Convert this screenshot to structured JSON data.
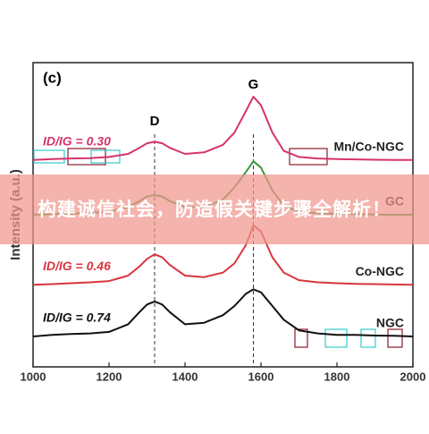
{
  "chart_data": {
    "type": "line",
    "panel_label": "(c)",
    "y_label": "Intensity (a.u.)",
    "x": [
      1000,
      1050,
      1100,
      1150,
      1200,
      1250,
      1280,
      1300,
      1320,
      1340,
      1360,
      1400,
      1450,
      1500,
      1530,
      1560,
      1580,
      1600,
      1630,
      1660,
      1700,
      1750,
      1800,
      1850,
      1900,
      1950,
      2000
    ],
    "xlim": [
      1000,
      2000
    ],
    "xticks": [
      1000,
      1200,
      1400,
      1600,
      1800,
      2000
    ],
    "ylim": [
      0,
      100
    ],
    "series": [
      {
        "name": "NGC",
        "color": "#111111",
        "ratio_label": "ID/IG = 0.74",
        "values": [
          10,
          10.5,
          10.8,
          11,
          11.5,
          14,
          18,
          20.5,
          21.5,
          20.5,
          18,
          14,
          14.5,
          17,
          20,
          24,
          25.5,
          24.5,
          20,
          15.5,
          12,
          11,
          10.5,
          10.5,
          10.3,
          10.2,
          10
        ]
      },
      {
        "name": "Co-NGC",
        "color": "#d9363e",
        "ratio_label": "ID/IG = 0.46",
        "values": [
          27,
          27.2,
          27.5,
          27.8,
          28.2,
          30,
          33,
          35.5,
          37,
          36,
          33.5,
          30,
          29.5,
          31,
          34,
          40,
          46.5,
          44.5,
          36,
          31,
          28.5,
          27.8,
          27.5,
          27.3,
          27.2,
          27.1,
          27
        ]
      },
      {
        "name": "GC",
        "color": "#3a9a3a",
        "values": [
          50,
          50.2,
          50.4,
          50.6,
          51,
          52.5,
          54.5,
          56,
          56.5,
          56,
          54.5,
          52.5,
          52.5,
          55,
          59,
          64,
          67.6,
          65.5,
          58,
          53,
          51,
          50.5,
          50.3,
          50.2,
          50.1,
          50,
          50
        ]
      },
      {
        "name": "Mn/Co-NGC",
        "color": "#d6336c",
        "ratio_label": "ID/IG = 0.30",
        "values": [
          68,
          68.3,
          68.5,
          68.6,
          69,
          70,
          72,
          73.5,
          74,
          73.5,
          72,
          70,
          70.5,
          73,
          77,
          84,
          88.8,
          86,
          77,
          71,
          69,
          68.5,
          68.3,
          68.2,
          68.1,
          68,
          68
        ]
      }
    ],
    "annotations": [
      {
        "text": "D",
        "x": 1320
      },
      {
        "text": "G",
        "x": 1580
      }
    ],
    "banner": "构建诚信社会，防造假关键步骤全解析！"
  }
}
